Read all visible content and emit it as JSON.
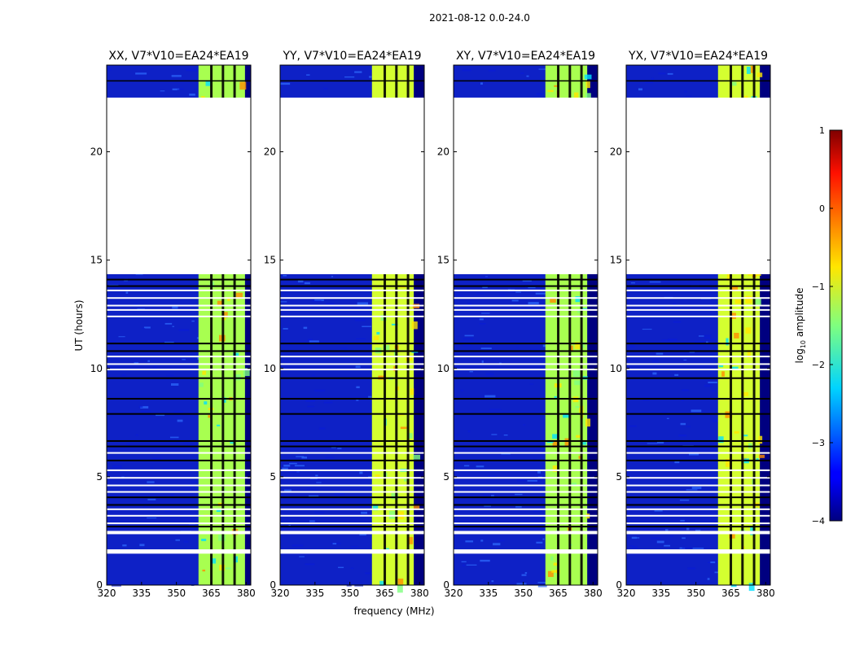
{
  "figure": {
    "suptitle": "2021-08-12 0.0-24.0",
    "ylabel": "UT (hours)",
    "xlabel": "frequency (MHz)"
  },
  "colors": {
    "background": "#000080",
    "band_low": "#1a3cff",
    "band_high": "#a8ff50",
    "flag_white": "#ffffff",
    "flag_black": "#000000"
  },
  "chart_data": {
    "type": "heatmap",
    "xlim": [
      320,
      382
    ],
    "ylim": [
      0,
      24
    ],
    "xticks": [
      320,
      335,
      350,
      365,
      380
    ],
    "yticks": [
      0,
      5,
      10,
      15,
      20
    ],
    "ytick_labels": [
      "0",
      "5",
      "10",
      "15",
      "20"
    ],
    "xtick_labels": [
      "320",
      "335",
      "350",
      "365",
      "380"
    ],
    "colormap": "jet",
    "panels": [
      {
        "title": "XX, V7*V10=EA24*EA19",
        "band_start": 359.5,
        "band_end": 379.5,
        "band_color": "#a8ff50"
      },
      {
        "title": "YY, V7*V10=EA24*EA19",
        "band_start": 359.5,
        "band_end": 377.5,
        "band_color": "#d4ff30"
      },
      {
        "title": "XY, V7*V10=EA24*EA19",
        "band_start": 359.5,
        "band_end": 377.5,
        "band_color": "#a8ff50"
      },
      {
        "title": "YX, V7*V10=EA24*EA19",
        "band_start": 359.5,
        "band_end": 377.5,
        "band_color": "#d4ff30"
      }
    ],
    "data_gaps_hours": [
      [
        1.45,
        1.65
      ],
      [
        2.35,
        2.5
      ],
      [
        14.35,
        22.5
      ]
    ],
    "colorbar": {
      "label": "log10 amplitude",
      "label_main": "log",
      "label_sub": "10",
      "label_rest": " amplitude",
      "range": [
        -4,
        1
      ],
      "ticks": [
        -4,
        -3,
        -2,
        -1,
        0,
        1
      ],
      "tick_labels": [
        "−4",
        "−3",
        "−2",
        "−1",
        "0",
        "1"
      ]
    }
  }
}
